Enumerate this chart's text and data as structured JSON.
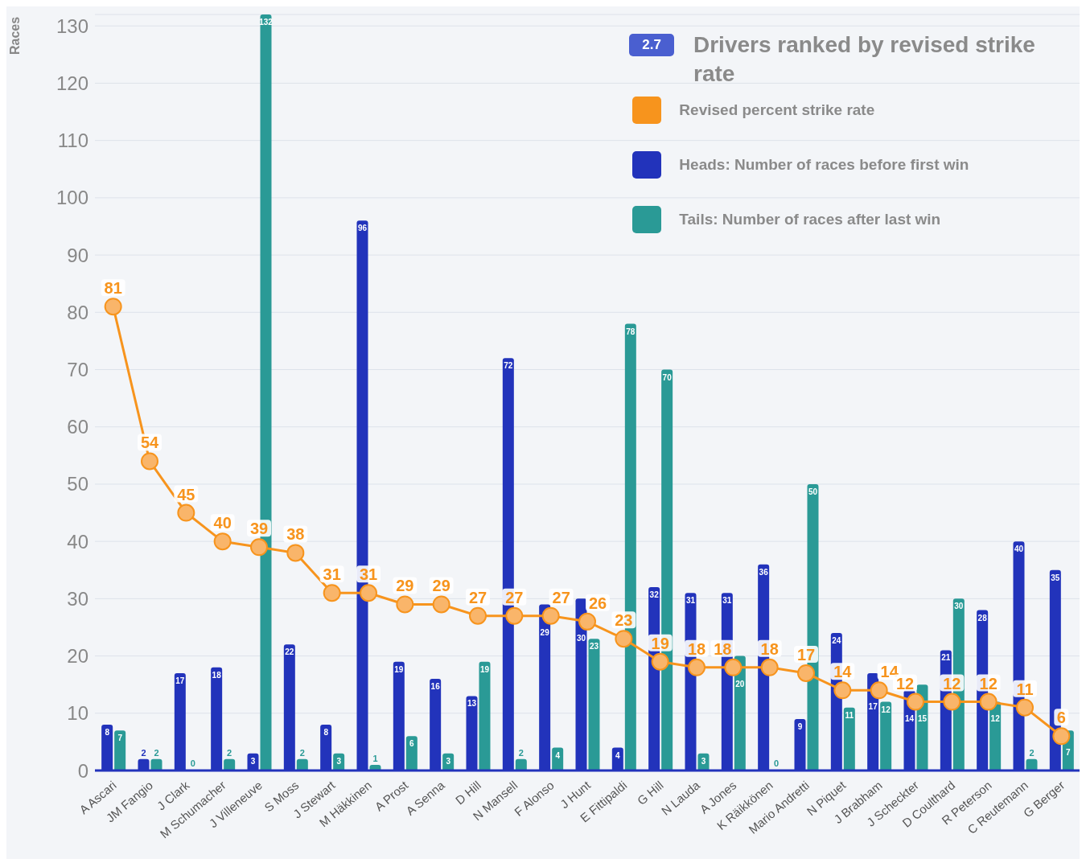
{
  "chart_data": {
    "type": "bar",
    "title": "Drivers ranked by revised strike rate",
    "annotations": [
      "2.7"
    ],
    "ylabel": "Races",
    "categories": [
      "A Ascari",
      "JM Fangio",
      "J Clark",
      "M Schumacher",
      "J Villeneuve",
      "S Moss",
      "J Stewart",
      "M Häkkinen",
      "A Prost",
      "A Senna",
      "D Hill",
      "N Mansell",
      "F Alonso",
      "J Hunt",
      "E Fittipaldi",
      "G Hill",
      "N Lauda",
      "A Jones",
      "K Räikkönen",
      "Mario Andretti",
      "N Piquet",
      "J Brabham",
      "J Scheckter",
      "D Coulthard",
      "R Peterson",
      "C Reutemann",
      "G Berger"
    ],
    "series": [
      {
        "name": "Revised percent strike rate",
        "type": "line",
        "color": "#f7941d",
        "values": [
          81,
          54,
          45,
          40,
          39,
          38,
          31,
          31,
          29,
          29,
          27,
          27,
          27,
          26,
          23,
          19,
          18,
          18,
          18,
          17,
          14,
          14,
          12,
          12,
          12,
          11,
          6
        ]
      },
      {
        "name": "Heads: Number of races before first win",
        "color": "#2233bb",
        "values": [
          8,
          2,
          17,
          18,
          3,
          22,
          8,
          96,
          19,
          16,
          13,
          72,
          29,
          30,
          4,
          32,
          31,
          31,
          36,
          9,
          24,
          17,
          14,
          21,
          28,
          40,
          35
        ]
      },
      {
        "name": "Tails: Number of races after last win",
        "color": "#2a9a96",
        "values": [
          7,
          2,
          0,
          2,
          132,
          2,
          3,
          1,
          6,
          3,
          19,
          2,
          4,
          23,
          78,
          70,
          3,
          20,
          0,
          50,
          11,
          12,
          15,
          30,
          12,
          2,
          7
        ]
      }
    ],
    "ylim": [
      0,
      132
    ],
    "yticks": [
      0,
      10,
      20,
      30,
      40,
      50,
      60,
      70,
      80,
      90,
      100,
      110,
      120,
      130
    ],
    "grid": "y",
    "legend": "top right",
    "marker": "circle",
    "data_labels": true
  }
}
